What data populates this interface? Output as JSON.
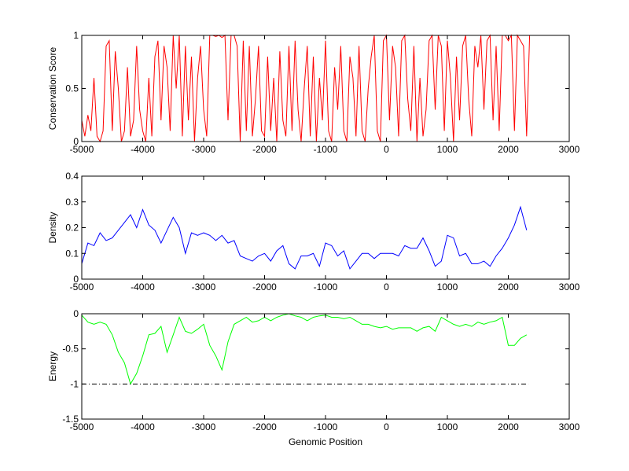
{
  "chart_data": [
    {
      "type": "line",
      "title": "",
      "xlabel": "",
      "ylabel": "Conservation Score",
      "xlim": [
        -5000,
        3000
      ],
      "ylim": [
        0,
        1
      ],
      "xticks": [
        "-5000",
        "-4000",
        "-3000",
        "-2000",
        "-1000",
        "0",
        "1000",
        "2000",
        "3000"
      ],
      "yticks": [
        "0",
        "0.5",
        "1"
      ],
      "ytick_values": [
        0,
        0.5,
        1
      ],
      "color": "#ff0000",
      "x_start": -5000,
      "x_step": 50,
      "values": [
        0.2,
        0.05,
        0.25,
        0.1,
        0.6,
        0.05,
        0.0,
        0.1,
        0.9,
        0.95,
        0.1,
        0.85,
        0.5,
        0.0,
        0.1,
        0.7,
        0.05,
        0.2,
        0.9,
        0.3,
        0.1,
        0.0,
        0.6,
        0.05,
        0.8,
        0.95,
        0.2,
        0.9,
        0.7,
        0.1,
        1.0,
        0.5,
        1.0,
        0.05,
        0.9,
        0.2,
        0.8,
        0.0,
        0.6,
        0.9,
        0.3,
        0.05,
        1.0,
        1.0,
        0.99,
        1.0,
        0.98,
        1.0,
        0.2,
        1.0,
        1.0,
        0.9,
        0.0,
        0.95,
        0.1,
        0.9,
        0.05,
        0.4,
        0.9,
        0.1,
        0.05,
        0.8,
        0.1,
        0.6,
        0.0,
        0.85,
        0.2,
        0.05,
        0.9,
        0.1,
        0.95,
        0.3,
        0.0,
        0.5,
        0.9,
        0.05,
        0.8,
        0.0,
        0.6,
        0.2,
        0.95,
        0.1,
        0.0,
        0.7,
        0.3,
        0.9,
        0.1,
        0.0,
        0.8,
        0.6,
        0.05,
        0.9,
        0.1,
        0.0,
        0.5,
        0.8,
        1.0,
        0.1,
        0.0,
        0.95,
        1.0,
        0.2,
        0.9,
        0.7,
        0.05,
        0.95,
        1.0,
        0.4,
        0.1,
        0.9,
        0.0,
        0.6,
        0.05,
        0.3,
        0.95,
        1.0,
        0.3,
        1.0,
        0.9,
        0.1,
        0.95,
        0.6,
        0.0,
        0.8,
        0.2,
        0.9,
        1.0,
        0.4,
        0.05,
        0.9,
        0.7,
        1.0,
        0.3,
        0.95,
        1.0,
        0.2,
        0.9,
        0.1,
        1.0,
        1.0,
        0.95,
        1.0,
        0.1,
        1.0,
        0.95,
        0.9,
        0.05,
        1.0,
        1.0
      ],
      "x_end": 2330
    },
    {
      "type": "line",
      "title": "",
      "xlabel": "",
      "ylabel": "Density",
      "xlim": [
        -5000,
        3000
      ],
      "ylim": [
        0,
        0.4
      ],
      "xticks": [
        "-5000",
        "-4000",
        "-3000",
        "-2000",
        "-1000",
        "0",
        "1000",
        "2000",
        "3000"
      ],
      "yticks": [
        "0",
        "0.1",
        "0.2",
        "0.3",
        "0.4"
      ],
      "ytick_values": [
        0,
        0.1,
        0.2,
        0.3,
        0.4
      ],
      "color": "#0000ff",
      "x_start": -5000,
      "x_step": 100,
      "values": [
        0.06,
        0.14,
        0.13,
        0.18,
        0.15,
        0.16,
        0.19,
        0.22,
        0.25,
        0.2,
        0.27,
        0.21,
        0.19,
        0.14,
        0.19,
        0.24,
        0.2,
        0.1,
        0.18,
        0.17,
        0.18,
        0.17,
        0.15,
        0.17,
        0.14,
        0.15,
        0.09,
        0.08,
        0.07,
        0.09,
        0.1,
        0.07,
        0.11,
        0.13,
        0.06,
        0.04,
        0.09,
        0.09,
        0.1,
        0.05,
        0.14,
        0.13,
        0.09,
        0.11,
        0.04,
        0.07,
        0.1,
        0.1,
        0.08,
        0.1,
        0.1,
        0.1,
        0.09,
        0.13,
        0.12,
        0.12,
        0.16,
        0.11,
        0.05,
        0.07,
        0.17,
        0.16,
        0.09,
        0.1,
        0.06,
        0.06,
        0.07,
        0.05,
        0.09,
        0.12,
        0.16,
        0.21,
        0.28,
        0.19
      ]
    },
    {
      "type": "line",
      "title": "",
      "xlabel": "Genomic Position",
      "ylabel": "Energy",
      "xlim": [
        -5000,
        3000
      ],
      "ylim": [
        -1.5,
        0
      ],
      "xticks": [
        "-5000",
        "-4000",
        "-3000",
        "-2000",
        "-1000",
        "0",
        "1000",
        "2000",
        "3000"
      ],
      "yticks": [
        "-1.5",
        "-1",
        "-0.5",
        "0"
      ],
      "ytick_values": [
        -1.5,
        -1,
        -0.5,
        0
      ],
      "color": "#00ff00",
      "reference_line": {
        "y": -1,
        "style": "dash-dot",
        "color": "#000000",
        "x_range": [
          -5000,
          2330
        ]
      },
      "x_start": -5000,
      "x_step": 100,
      "values": [
        -0.02,
        -0.12,
        -0.15,
        -0.12,
        -0.15,
        -0.3,
        -0.55,
        -0.7,
        -1.0,
        -0.85,
        -0.6,
        -0.3,
        -0.28,
        -0.18,
        -0.55,
        -0.3,
        -0.05,
        -0.25,
        -0.28,
        -0.22,
        -0.15,
        -0.45,
        -0.6,
        -0.8,
        -0.4,
        -0.15,
        -0.1,
        -0.05,
        -0.12,
        -0.1,
        -0.05,
        -0.1,
        -0.05,
        -0.02,
        0.0,
        -0.03,
        -0.05,
        -0.1,
        -0.05,
        -0.03,
        -0.02,
        -0.05,
        -0.05,
        -0.07,
        -0.05,
        -0.1,
        -0.15,
        -0.15,
        -0.18,
        -0.2,
        -0.18,
        -0.22,
        -0.2,
        -0.2,
        -0.2,
        -0.25,
        -0.2,
        -0.18,
        -0.25,
        -0.05,
        -0.1,
        -0.15,
        -0.18,
        -0.15,
        -0.18,
        -0.12,
        -0.15,
        -0.12,
        -0.1,
        -0.05,
        -0.45,
        -0.45,
        -0.35,
        -0.3
      ]
    }
  ]
}
